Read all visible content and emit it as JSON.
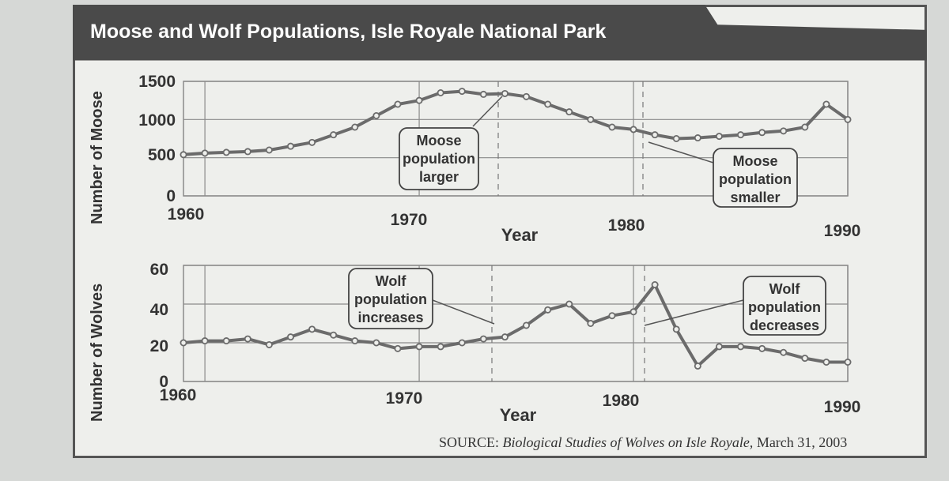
{
  "title": "Moose and Wolf Populations, Isle Royale National Park",
  "source_label": "SOURCE:",
  "source_work": "Biological Studies of Wolves on Isle Royale,",
  "source_date": "March 31, 2003",
  "colors": {
    "line": "#6b6b6b",
    "grid": "#8a8a8a",
    "frame": "#555555",
    "title_bar": "#4a4a4a"
  },
  "chart_data": [
    {
      "type": "line",
      "ylabel": "Number of Moose",
      "xlabel": "Year",
      "x_ticks": [
        "1960",
        "1970",
        "1980",
        "1990"
      ],
      "y_ticks": [
        "0",
        "500",
        "1000",
        "1500"
      ],
      "xlim": [
        1959,
        1990
      ],
      "ylim": [
        0,
        1500
      ],
      "grid": true,
      "series": [
        {
          "x": [
            1959,
            1960,
            1961,
            1962,
            1963,
            1964,
            1965,
            1966,
            1967,
            1968,
            1969,
            1970,
            1971,
            1972,
            1973,
            1974,
            1975,
            1976,
            1977,
            1978,
            1979,
            1980,
            1981,
            1982,
            1983,
            1984,
            1985,
            1986,
            1987,
            1988,
            1989,
            1990
          ],
          "values": [
            540,
            560,
            570,
            580,
            600,
            650,
            700,
            800,
            900,
            1050,
            1200,
            1250,
            1350,
            1370,
            1330,
            1340,
            1300,
            1200,
            1100,
            1000,
            900,
            870,
            800,
            750,
            760,
            780,
            800,
            830,
            850,
            900,
            1200,
            1000
          ]
        }
      ],
      "annotations": [
        {
          "lines": [
            "Moose",
            "population",
            "larger"
          ]
        },
        {
          "lines": [
            "Moose",
            "population",
            "smaller"
          ]
        }
      ]
    },
    {
      "type": "line",
      "ylabel": "Number of Wolves",
      "xlabel": "Year",
      "x_ticks": [
        "1960",
        "1970",
        "1980",
        "1990"
      ],
      "y_ticks": [
        "0",
        "20",
        "40",
        "60"
      ],
      "xlim": [
        1959,
        1990
      ],
      "ylim": [
        0,
        60
      ],
      "grid": true,
      "series": [
        {
          "x": [
            1959,
            1960,
            1961,
            1962,
            1963,
            1964,
            1965,
            1966,
            1967,
            1968,
            1969,
            1970,
            1971,
            1972,
            1973,
            1974,
            1975,
            1976,
            1977,
            1978,
            1979,
            1980,
            1981,
            1982,
            1983,
            1984,
            1985,
            1986,
            1987,
            1988,
            1989,
            1990
          ],
          "values": [
            20,
            21,
            21,
            22,
            19,
            23,
            27,
            24,
            21,
            20,
            17,
            18,
            18,
            20,
            22,
            23,
            29,
            37,
            40,
            30,
            34,
            36,
            50,
            27,
            8,
            18,
            18,
            17,
            15,
            12,
            10,
            10
          ]
        }
      ],
      "annotations": [
        {
          "lines": [
            "Wolf",
            "population",
            "increases"
          ]
        },
        {
          "lines": [
            "Wolf",
            "population",
            "decreases"
          ]
        }
      ]
    }
  ]
}
